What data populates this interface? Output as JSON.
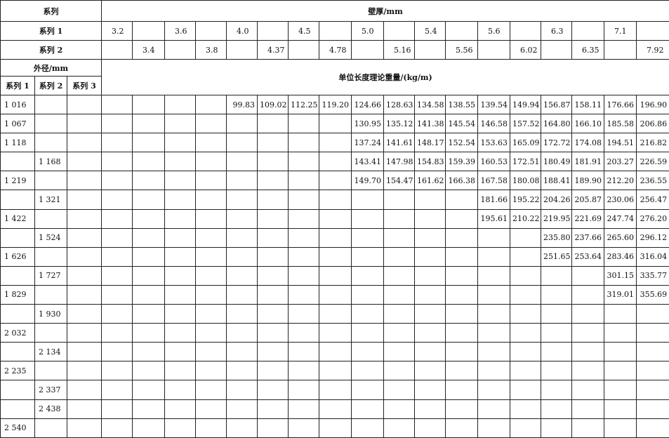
{
  "header": {
    "series_label": "系列",
    "wall_thickness_label": "壁厚/mm",
    "series1_label": "系列 1",
    "series2_label": "系列 2",
    "series3_label": "系列 3",
    "outer_diameter_label": "外径/mm",
    "weight_label": "单位长度理论重量/(kg/m)"
  },
  "thickness_series1": [
    "3.2",
    "",
    "3.6",
    "",
    "4.0",
    "",
    "4.5",
    "",
    "5.0",
    "",
    "5.4",
    "",
    "5.6",
    "",
    "6.3",
    "",
    "7.1",
    ""
  ],
  "thickness_series2": [
    "",
    "3.4",
    "",
    "3.8",
    "",
    "4.37",
    "",
    "4.78",
    "",
    "5.16",
    "",
    "5.56",
    "",
    "6.02",
    "",
    "6.35",
    "",
    "7.92"
  ],
  "rows": [
    {
      "s1": "1 016",
      "s2": "",
      "s3": "",
      "w": [
        "",
        "",
        "",
        "",
        "99.83",
        "109.02",
        "112.25",
        "119.20",
        "124.66",
        "128.63",
        "134.58",
        "138.55",
        "139.54",
        "149.94",
        "156.87",
        "158.11",
        "176.66",
        "196.90"
      ]
    },
    {
      "s1": "1 067",
      "s2": "",
      "s3": "",
      "w": [
        "",
        "",
        "",
        "",
        "",
        "",
        "",
        "",
        "130.95",
        "135.12",
        "141.38",
        "145.54",
        "146.58",
        "157.52",
        "164.80",
        "166.10",
        "185.58",
        "206.86"
      ]
    },
    {
      "s1": "1 118",
      "s2": "",
      "s3": "",
      "w": [
        "",
        "",
        "",
        "",
        "",
        "",
        "",
        "",
        "137.24",
        "141.61",
        "148.17",
        "152.54",
        "153.63",
        "165.09",
        "172.72",
        "174.08",
        "194.51",
        "216.82"
      ]
    },
    {
      "s1": "",
      "s2": "1 168",
      "s3": "",
      "w": [
        "",
        "",
        "",
        "",
        "",
        "",
        "",
        "",
        "143.41",
        "147.98",
        "154.83",
        "159.39",
        "160.53",
        "172.51",
        "180.49",
        "181.91",
        "203.27",
        "226.59"
      ]
    },
    {
      "s1": "1 219",
      "s2": "",
      "s3": "",
      "w": [
        "",
        "",
        "",
        "",
        "",
        "",
        "",
        "",
        "149.70",
        "154.47",
        "161.62",
        "166.38",
        "167.58",
        "180.08",
        "188.41",
        "189.90",
        "212.20",
        "236.55"
      ]
    },
    {
      "s1": "",
      "s2": "1 321",
      "s3": "",
      "w": [
        "",
        "",
        "",
        "",
        "",
        "",
        "",
        "",
        "",
        "",
        "",
        "",
        "181.66",
        "195.22",
        "204.26",
        "205.87",
        "230.06",
        "256.47"
      ]
    },
    {
      "s1": "1 422",
      "s2": "",
      "s3": "",
      "w": [
        "",
        "",
        "",
        "",
        "",
        "",
        "",
        "",
        "",
        "",
        "",
        "",
        "195.61",
        "210.22",
        "219.95",
        "221.69",
        "247.74",
        "276.20"
      ]
    },
    {
      "s1": "",
      "s2": "1 524",
      "s3": "",
      "w": [
        "",
        "",
        "",
        "",
        "",
        "",
        "",
        "",
        "",
        "",
        "",
        "",
        "",
        "",
        "235.80",
        "237.66",
        "265.60",
        "296.12"
      ]
    },
    {
      "s1": "1 626",
      "s2": "",
      "s3": "",
      "w": [
        "",
        "",
        "",
        "",
        "",
        "",
        "",
        "",
        "",
        "",
        "",
        "",
        "",
        "",
        "251.65",
        "253.64",
        "283.46",
        "316.04"
      ]
    },
    {
      "s1": "",
      "s2": "1 727",
      "s3": "",
      "w": [
        "",
        "",
        "",
        "",
        "",
        "",
        "",
        "",
        "",
        "",
        "",
        "",
        "",
        "",
        "",
        "",
        "301.15",
        "335.77"
      ]
    },
    {
      "s1": "1 829",
      "s2": "",
      "s3": "",
      "w": [
        "",
        "",
        "",
        "",
        "",
        "",
        "",
        "",
        "",
        "",
        "",
        "",
        "",
        "",
        "",
        "",
        "319.01",
        "355.69"
      ]
    },
    {
      "s1": "",
      "s2": "1 930",
      "s3": "",
      "w": [
        "",
        "",
        "",
        "",
        "",
        "",
        "",
        "",
        "",
        "",
        "",
        "",
        "",
        "",
        "",
        "",
        "",
        ""
      ]
    },
    {
      "s1": "2 032",
      "s2": "",
      "s3": "",
      "w": [
        "",
        "",
        "",
        "",
        "",
        "",
        "",
        "",
        "",
        "",
        "",
        "",
        "",
        "",
        "",
        "",
        "",
        ""
      ]
    },
    {
      "s1": "",
      "s2": "2 134",
      "s3": "",
      "w": [
        "",
        "",
        "",
        "",
        "",
        "",
        "",
        "",
        "",
        "",
        "",
        "",
        "",
        "",
        "",
        "",
        "",
        ""
      ]
    },
    {
      "s1": "2 235",
      "s2": "",
      "s3": "",
      "w": [
        "",
        "",
        "",
        "",
        "",
        "",
        "",
        "",
        "",
        "",
        "",
        "",
        "",
        "",
        "",
        "",
        "",
        ""
      ]
    },
    {
      "s1": "",
      "s2": "2 337",
      "s3": "",
      "w": [
        "",
        "",
        "",
        "",
        "",
        "",
        "",
        "",
        "",
        "",
        "",
        "",
        "",
        "",
        "",
        "",
        "",
        ""
      ]
    },
    {
      "s1": "",
      "s2": "2 438",
      "s3": "",
      "w": [
        "",
        "",
        "",
        "",
        "",
        "",
        "",
        "",
        "",
        "",
        "",
        "",
        "",
        "",
        "",
        "",
        "",
        ""
      ]
    },
    {
      "s1": "2 540",
      "s2": "",
      "s3": "",
      "w": [
        "",
        "",
        "",
        "",
        "",
        "",
        "",
        "",
        "",
        "",
        "",
        "",
        "",
        "",
        "",
        "",
        "",
        ""
      ]
    }
  ]
}
